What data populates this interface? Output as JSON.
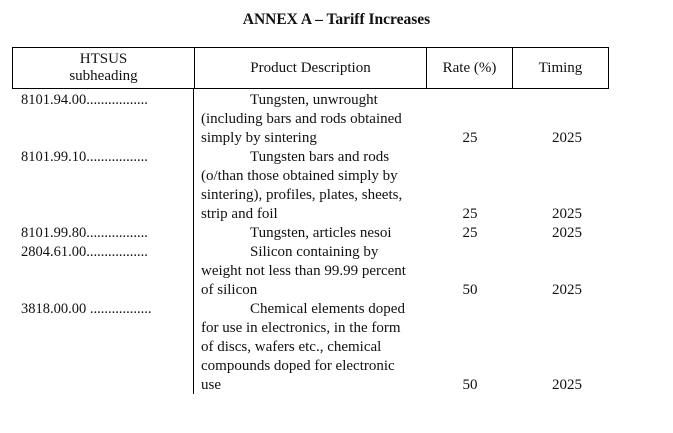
{
  "title": "ANNEX A – Tariff Increases",
  "headers": {
    "htsus_line1": "HTSUS",
    "htsus_line2": "subheading",
    "description": "Product Description",
    "rate": "Rate (%)",
    "timing": "Timing"
  },
  "rows": [
    {
      "code": "8101.94.00.................",
      "description": "Tungsten, unwrought (including bars and rods obtained simply by sintering",
      "rate": "25",
      "timing": "2025"
    },
    {
      "code": "8101.99.10.................",
      "description": "Tungsten bars and rods (o/than those obtained simply by sintering), profiles, plates, sheets, strip and foil",
      "rate": "25",
      "timing": "2025"
    },
    {
      "code": "8101.99.80.................",
      "description": "Tungsten, articles nesoi",
      "rate": "25",
      "timing": "2025"
    },
    {
      "code": "2804.61.00.................",
      "description": "Silicon containing by weight not less than 99.99 percent of silicon",
      "rate": "50",
      "timing": "2025"
    },
    {
      "code": "3818.00.00 .................",
      "description": "Chemical elements doped for use in electronics, in the form of discs, wafers etc., chemical compounds doped for electronic use",
      "rate": "50",
      "timing": "2025"
    }
  ]
}
